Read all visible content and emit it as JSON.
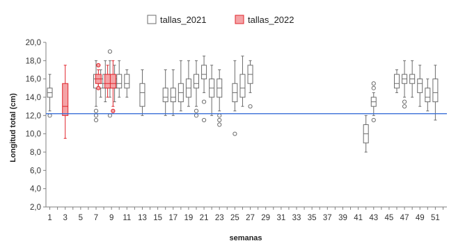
{
  "chart_data": {
    "type": "box",
    "title": "",
    "xlabel": "semanas",
    "ylabel": "Longitud total (cm)",
    "ylim": [
      2,
      20
    ],
    "xlim": [
      0.5,
      52.5
    ],
    "x_ticks": [
      1,
      3,
      5,
      7,
      9,
      11,
      13,
      15,
      17,
      19,
      21,
      23,
      25,
      27,
      29,
      31,
      33,
      35,
      37,
      39,
      41,
      43,
      45,
      47,
      49,
      51
    ],
    "y_ticks": [
      "2,0",
      "4,0",
      "6,0",
      "8,0",
      "10,0",
      "12,0",
      "14,0",
      "16,0",
      "18,0",
      "20,0"
    ],
    "y_tick_values": [
      2,
      4,
      6,
      8,
      10,
      12,
      14,
      16,
      18,
      20
    ],
    "legend_position": "top-center",
    "reference_line": {
      "y": 12.2,
      "color": "#3a6fd8"
    },
    "series": [
      {
        "name": "tallas_2021",
        "color": "#6b6b6b",
        "fill": "#ffffff",
        "boxes": [
          {
            "x": 1,
            "min": 12.5,
            "q1": 14.0,
            "median": 14.5,
            "q3": 15.0,
            "max": 16.5,
            "outliers": [
              12.0
            ]
          },
          {
            "x": 7,
            "min": 13.0,
            "q1": 15.0,
            "median": 16.0,
            "q3": 16.5,
            "max": 18.0,
            "outliers": [
              11.5,
              12.0,
              12.5
            ]
          },
          {
            "x": 7.6,
            "min": 14.0,
            "q1": 15.0,
            "median": 15.5,
            "q3": 16.0,
            "max": 17.0,
            "outliers": []
          },
          {
            "x": 8.2,
            "min": 13.5,
            "q1": 15.0,
            "median": 15.5,
            "q3": 16.5,
            "max": 18.0,
            "outliers": []
          },
          {
            "x": 8.8,
            "min": 14.0,
            "q1": 15.0,
            "median": 15.5,
            "q3": 16.5,
            "max": 18.0,
            "outliers": [
              19.0,
              12.0
            ]
          },
          {
            "x": 9.4,
            "min": 13.5,
            "q1": 15.0,
            "median": 15.5,
            "q3": 16.0,
            "max": 17.5,
            "outliers": []
          },
          {
            "x": 10,
            "min": 14.0,
            "q1": 15.0,
            "median": 15.5,
            "q3": 16.5,
            "max": 18.0,
            "outliers": []
          },
          {
            "x": 11,
            "min": 14.0,
            "q1": 15.0,
            "median": 15.5,
            "q3": 16.5,
            "max": 17.0,
            "outliers": []
          },
          {
            "x": 13,
            "min": 12.0,
            "q1": 13.0,
            "median": 14.5,
            "q3": 15.5,
            "max": 17.0,
            "outliers": []
          },
          {
            "x": 16,
            "min": 12.0,
            "q1": 13.5,
            "median": 14.0,
            "q3": 15.0,
            "max": 17.0,
            "outliers": []
          },
          {
            "x": 17,
            "min": 12.0,
            "q1": 13.5,
            "median": 14.0,
            "q3": 15.0,
            "max": 17.0,
            "outliers": []
          },
          {
            "x": 18,
            "min": 12.5,
            "q1": 13.5,
            "median": 14.5,
            "q3": 15.5,
            "max": 18.0,
            "outliers": []
          },
          {
            "x": 19,
            "min": 13.0,
            "q1": 14.0,
            "median": 15.0,
            "q3": 16.0,
            "max": 18.0,
            "outliers": []
          },
          {
            "x": 20,
            "min": 13.0,
            "q1": 15.0,
            "median": 15.5,
            "q3": 16.5,
            "max": 18.0,
            "outliers": [
              12.5,
              12.0
            ]
          },
          {
            "x": 21,
            "min": 14.5,
            "q1": 16.0,
            "median": 16.5,
            "q3": 17.5,
            "max": 18.5,
            "outliers": [
              13.5,
              11.5
            ]
          },
          {
            "x": 22,
            "min": 12.0,
            "q1": 14.0,
            "median": 15.0,
            "q3": 16.0,
            "max": 17.5,
            "outliers": []
          },
          {
            "x": 23,
            "min": 12.5,
            "q1": 14.0,
            "median": 15.0,
            "q3": 16.0,
            "max": 17.0,
            "outliers": [
              12.0,
              11.5,
              11.0
            ]
          },
          {
            "x": 25,
            "min": 12.5,
            "q1": 13.5,
            "median": 14.5,
            "q3": 15.5,
            "max": 18.0,
            "outliers": [
              10.0
            ]
          },
          {
            "x": 26,
            "min": 13.0,
            "q1": 14.0,
            "median": 15.0,
            "q3": 16.5,
            "max": 18.5,
            "outliers": []
          },
          {
            "x": 27,
            "min": 14.5,
            "q1": 15.5,
            "median": 16.5,
            "q3": 17.5,
            "max": 18.0,
            "outliers": [
              13.0
            ]
          },
          {
            "x": 42,
            "min": 8.0,
            "q1": 9.0,
            "median": 10.0,
            "q3": 11.0,
            "max": 12.0,
            "outliers": []
          },
          {
            "x": 43,
            "min": 12.0,
            "q1": 13.0,
            "median": 13.5,
            "q3": 14.0,
            "max": 14.5,
            "outliers": [
              15.0,
              15.5,
              11.5
            ]
          },
          {
            "x": 46,
            "min": 14.5,
            "q1": 15.0,
            "median": 15.5,
            "q3": 16.5,
            "max": 17.0,
            "outliers": []
          },
          {
            "x": 47,
            "min": 14.0,
            "q1": 15.5,
            "median": 16.0,
            "q3": 16.5,
            "max": 18.0,
            "outliers": [
              13.5,
              13.0
            ]
          },
          {
            "x": 48,
            "min": 14.0,
            "q1": 15.5,
            "median": 16.0,
            "q3": 16.5,
            "max": 18.0,
            "outliers": []
          },
          {
            "x": 49,
            "min": 13.0,
            "q1": 14.5,
            "median": 15.5,
            "q3": 16.0,
            "max": 17.5,
            "outliers": []
          },
          {
            "x": 50,
            "min": 12.5,
            "q1": 13.5,
            "median": 14.0,
            "q3": 15.0,
            "max": 16.0,
            "outliers": []
          },
          {
            "x": 51,
            "min": 11.5,
            "q1": 13.5,
            "median": 14.5,
            "q3": 16.0,
            "max": 17.5,
            "outliers": []
          }
        ]
      },
      {
        "name": "tallas_2022",
        "color": "#e0242b",
        "fill": "#f4a3a6",
        "boxes": [
          {
            "x": 3,
            "min": 9.5,
            "q1": 12.0,
            "median": 13.0,
            "q3": 15.5,
            "max": 17.5,
            "outliers": []
          },
          {
            "x": 7.3,
            "min": 15.0,
            "q1": 15.5,
            "median": 16.0,
            "q3": 16.5,
            "max": 17.0,
            "outliers": [
              17.5,
              15.0
            ]
          },
          {
            "x": 8.5,
            "min": 14.0,
            "q1": 15.0,
            "median": 15.5,
            "q3": 16.5,
            "max": 17.5,
            "outliers": []
          },
          {
            "x": 9.2,
            "min": 13.0,
            "q1": 15.0,
            "median": 15.5,
            "q3": 16.5,
            "max": 18.0,
            "outliers": [
              12.5
            ]
          }
        ]
      }
    ]
  }
}
